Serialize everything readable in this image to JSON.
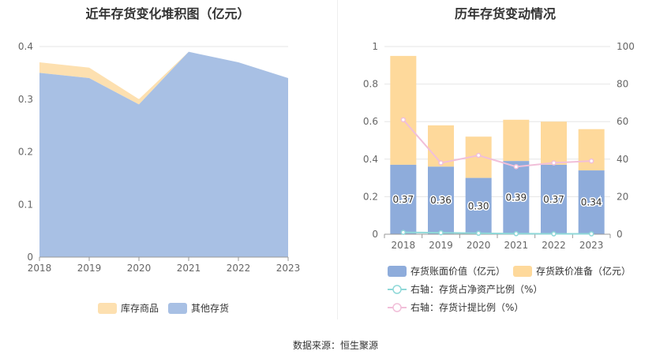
{
  "source_text": "数据来源：恒生聚源",
  "chart_data": [
    {
      "type": "area",
      "title": "近年存货变化堆积图（亿元）",
      "categories": [
        "2018",
        "2019",
        "2020",
        "2021",
        "2022",
        "2023"
      ],
      "ylim": [
        0,
        0.4
      ],
      "yticks": [
        "0",
        "0.1",
        "0.2",
        "0.3",
        "0.4"
      ],
      "stacked": true,
      "series": [
        {
          "name": "其他存货",
          "color": "#a8c0e4",
          "values": [
            0.35,
            0.34,
            0.29,
            0.39,
            0.37,
            0.34
          ]
        },
        {
          "name": "库存商品",
          "color": "#fde0b0",
          "values": [
            0.02,
            0.02,
            0.01,
            0.0,
            0.0,
            0.0
          ]
        }
      ],
      "legend": {
        "position": "bottom",
        "items": [
          "库存商品",
          "其他存货"
        ]
      },
      "grid": true
    },
    {
      "type": "bar",
      "title": "历年存货变动情况",
      "categories": [
        "2018",
        "2019",
        "2020",
        "2021",
        "2022",
        "2023"
      ],
      "ylim_left": [
        0,
        1
      ],
      "yticks_left": [
        "0",
        "0.2",
        "0.4",
        "0.6",
        "0.8",
        "1"
      ],
      "ylim_right": [
        0,
        100
      ],
      "yticks_right": [
        "0",
        "20",
        "40",
        "60",
        "80",
        "100"
      ],
      "bars": [
        {
          "name": "存货账面价值（亿元）",
          "color": "#8eacdb",
          "values": [
            0.37,
            0.36,
            0.3,
            0.39,
            0.37,
            0.34
          ],
          "labels": [
            "0.37",
            "0.36",
            "0.30",
            "0.39",
            "0.37",
            "0.34"
          ]
        },
        {
          "name": "存货跌价准备（亿元）",
          "color": "#fed99b",
          "values": [
            0.58,
            0.22,
            0.22,
            0.22,
            0.23,
            0.22
          ]
        }
      ],
      "lines": [
        {
          "name": "右轴：存货占净资产比例（%）",
          "color": "#8fd8d8",
          "axis": "right",
          "values": [
            1.0,
            0.8,
            0.5,
            0.3,
            0.2,
            0.2
          ]
        },
        {
          "name": "右轴：存货计提比例（%）",
          "color": "#f1bfd9",
          "axis": "right",
          "values": [
            61,
            38,
            42,
            36,
            38,
            39
          ]
        }
      ],
      "legend": {
        "position": "bottom"
      },
      "grid": true
    }
  ]
}
